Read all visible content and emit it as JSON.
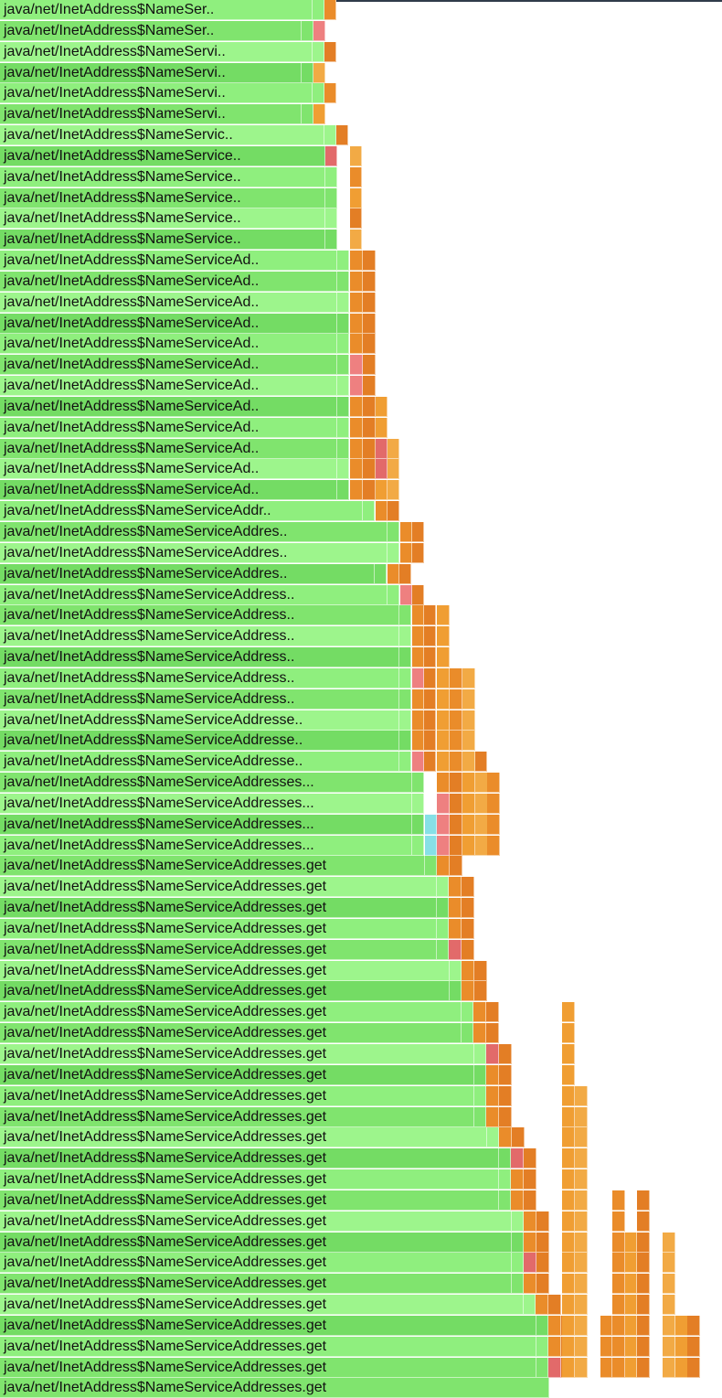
{
  "app": {
    "view": "flame-graph"
  },
  "colors": {
    "green": [
      "#8fef7e",
      "#80e46e",
      "#9df58c",
      "#74dc64"
    ],
    "orange": [
      "#ea8c2a",
      "#f09e33",
      "#e37e25",
      "#f2aa45"
    ],
    "red": [
      "#e26a6a",
      "#ee8080",
      "#d85858"
    ],
    "cyan": "#86e0e6"
  },
  "frames": [
    {
      "label": "java/net/InetAddress$NameSer.."
    },
    {
      "label": "java/net/InetAddress$NameSer.."
    },
    {
      "label": "java/net/InetAddress$NameServi.."
    },
    {
      "label": "java/net/InetAddress$NameServi.."
    },
    {
      "label": "java/net/InetAddress$NameServi.."
    },
    {
      "label": "java/net/InetAddress$NameServi.."
    },
    {
      "label": "java/net/InetAddress$NameServic.."
    },
    {
      "label": "java/net/InetAddress$NameService.."
    },
    {
      "label": "java/net/InetAddress$NameService.."
    },
    {
      "label": "java/net/InetAddress$NameService.."
    },
    {
      "label": "java/net/InetAddress$NameService.."
    },
    {
      "label": "java/net/InetAddress$NameService.."
    },
    {
      "label": "java/net/InetAddress$NameServiceAd.."
    },
    {
      "label": "java/net/InetAddress$NameServiceAd.."
    },
    {
      "label": "java/net/InetAddress$NameServiceAd.."
    },
    {
      "label": "java/net/InetAddress$NameServiceAd.."
    },
    {
      "label": "java/net/InetAddress$NameServiceAd.."
    },
    {
      "label": "java/net/InetAddress$NameServiceAd.."
    },
    {
      "label": "java/net/InetAddress$NameServiceAd.."
    },
    {
      "label": "java/net/InetAddress$NameServiceAd.."
    },
    {
      "label": "java/net/InetAddress$NameServiceAd.."
    },
    {
      "label": "java/net/InetAddress$NameServiceAd.."
    },
    {
      "label": "java/net/InetAddress$NameServiceAd.."
    },
    {
      "label": "java/net/InetAddress$NameServiceAd.."
    },
    {
      "label": "java/net/InetAddress$NameServiceAddr.."
    },
    {
      "label": "java/net/InetAddress$NameServiceAddres.."
    },
    {
      "label": "java/net/InetAddress$NameServiceAddres.."
    },
    {
      "label": "java/net/InetAddress$NameServiceAddres.."
    },
    {
      "label": "java/net/InetAddress$NameServiceAddress.."
    },
    {
      "label": "java/net/InetAddress$NameServiceAddress.."
    },
    {
      "label": "java/net/InetAddress$NameServiceAddress.."
    },
    {
      "label": "java/net/InetAddress$NameServiceAddress.."
    },
    {
      "label": "java/net/InetAddress$NameServiceAddress.."
    },
    {
      "label": "java/net/InetAddress$NameServiceAddress.."
    },
    {
      "label": "java/net/InetAddress$NameServiceAddresse.."
    },
    {
      "label": "java/net/InetAddress$NameServiceAddresse.."
    },
    {
      "label": "java/net/InetAddress$NameServiceAddresse.."
    },
    {
      "label": "java/net/InetAddress$NameServiceAddresses..."
    },
    {
      "label": "java/net/InetAddress$NameServiceAddresses..."
    },
    {
      "label": "java/net/InetAddress$NameServiceAddresses..."
    },
    {
      "label": "java/net/InetAddress$NameServiceAddresses..."
    },
    {
      "label": "java/net/InetAddress$NameServiceAddresses.get"
    },
    {
      "label": "java/net/InetAddress$NameServiceAddresses.get"
    },
    {
      "label": "java/net/InetAddress$NameServiceAddresses.get"
    },
    {
      "label": "java/net/InetAddress$NameServiceAddresses.get"
    },
    {
      "label": "java/net/InetAddress$NameServiceAddresses.get"
    },
    {
      "label": "java/net/InetAddress$NameServiceAddresses.get"
    },
    {
      "label": "java/net/InetAddress$NameServiceAddresses.get"
    },
    {
      "label": "java/net/InetAddress$NameServiceAddresses.get"
    },
    {
      "label": "java/net/InetAddress$NameServiceAddresses.get"
    },
    {
      "label": "java/net/InetAddress$NameServiceAddresses.get"
    },
    {
      "label": "java/net/InetAddress$NameServiceAddresses.get"
    },
    {
      "label": "java/net/InetAddress$NameServiceAddresses.get"
    },
    {
      "label": "java/net/InetAddress$NameServiceAddresses.get"
    },
    {
      "label": "java/net/InetAddress$NameServiceAddresses.get"
    },
    {
      "label": "java/net/InetAddress$NameServiceAddresses.get"
    },
    {
      "label": "java/net/InetAddress$NameServiceAddresses.get"
    },
    {
      "label": "java/net/InetAddress$NameServiceAddresses.get"
    },
    {
      "label": "java/net/InetAddress$NameServiceAddresses.get"
    },
    {
      "label": "java/net/InetAddress$NameServiceAddresses.get"
    },
    {
      "label": "java/net/InetAddress$NameServiceAddresses.get"
    },
    {
      "label": "java/net/InetAddress$NameServiceAddresses.get"
    },
    {
      "label": "java/net/InetAddress$NameServiceAddresses.get"
    },
    {
      "label": "java/net/InetAddress$NameServiceAddresses.get"
    },
    {
      "label": "java/net/InetAddress$NameServiceAddresses.get"
    },
    {
      "label": "java/net/InetAddress$NameServiceAddresses.get"
    }
  ],
  "footer_partial_label": "java/net/InetAddress$NameServiceAddresses.get"
}
